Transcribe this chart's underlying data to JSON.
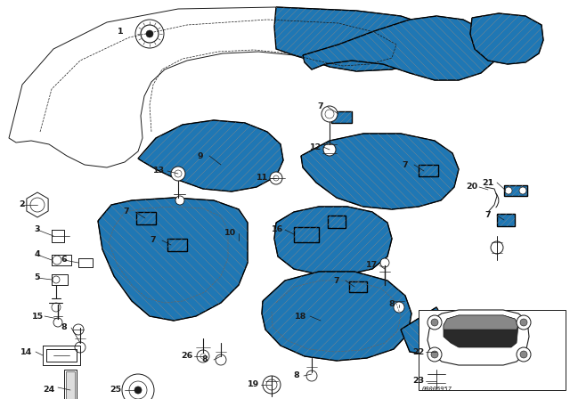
{
  "bg_color": "#ffffff",
  "line_color": "#1a1a1a",
  "diagram_code": "00006957",
  "figsize": [
    6.4,
    4.48
  ],
  "dpi": 100
}
